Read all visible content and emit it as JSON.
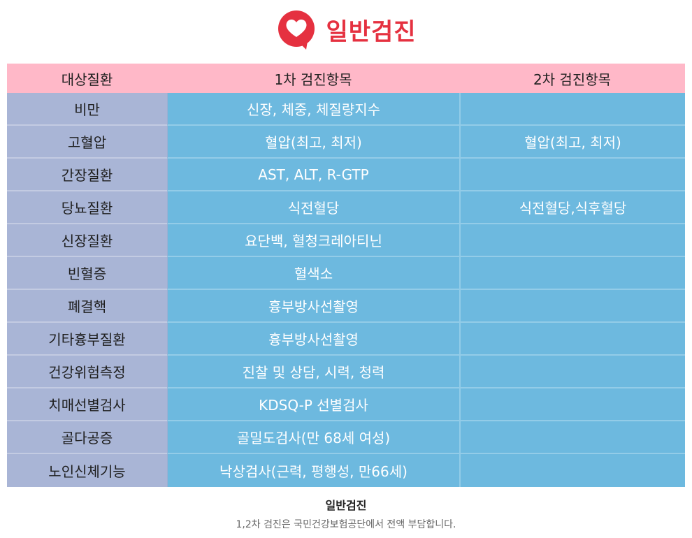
{
  "header": {
    "title": "일반검진",
    "logo_icon": "heart-speech-bubble-icon",
    "accent_color": "#e53140"
  },
  "table": {
    "columns": [
      "대상질환",
      "1차 검진항목",
      "2차 검진항목"
    ],
    "rows": [
      [
        "비만",
        "신장, 체중, 체질량지수",
        ""
      ],
      [
        "고혈압",
        "혈압(최고, 최저)",
        "혈압(최고, 최저)"
      ],
      [
        "간장질환",
        "AST, ALT, R-GTP",
        ""
      ],
      [
        "당뇨질환",
        "식전혈당",
        "식전혈당,식후혈당"
      ],
      [
        "신장질환",
        "요단백, 혈청크레아티닌",
        ""
      ],
      [
        "빈혈증",
        "혈색소",
        ""
      ],
      [
        "폐결핵",
        "흉부방사선촬영",
        ""
      ],
      [
        "기타흉부질환",
        "흉부방사선촬영",
        ""
      ],
      [
        "건강위험측정",
        "진찰 및 상담, 시력, 청력",
        ""
      ],
      [
        "치매선별검사",
        "KDSQ-P 선별검사",
        ""
      ],
      [
        "골다공증",
        "골밀도검사(만 68세 여성)",
        ""
      ],
      [
        "노인신체기능",
        "낙상검사(근력, 평행성, 만66세)",
        ""
      ]
    ]
  },
  "caption": "일반검진",
  "note": "1,2차 검진은 국민건강보험공단에서 전액 부담합니다."
}
